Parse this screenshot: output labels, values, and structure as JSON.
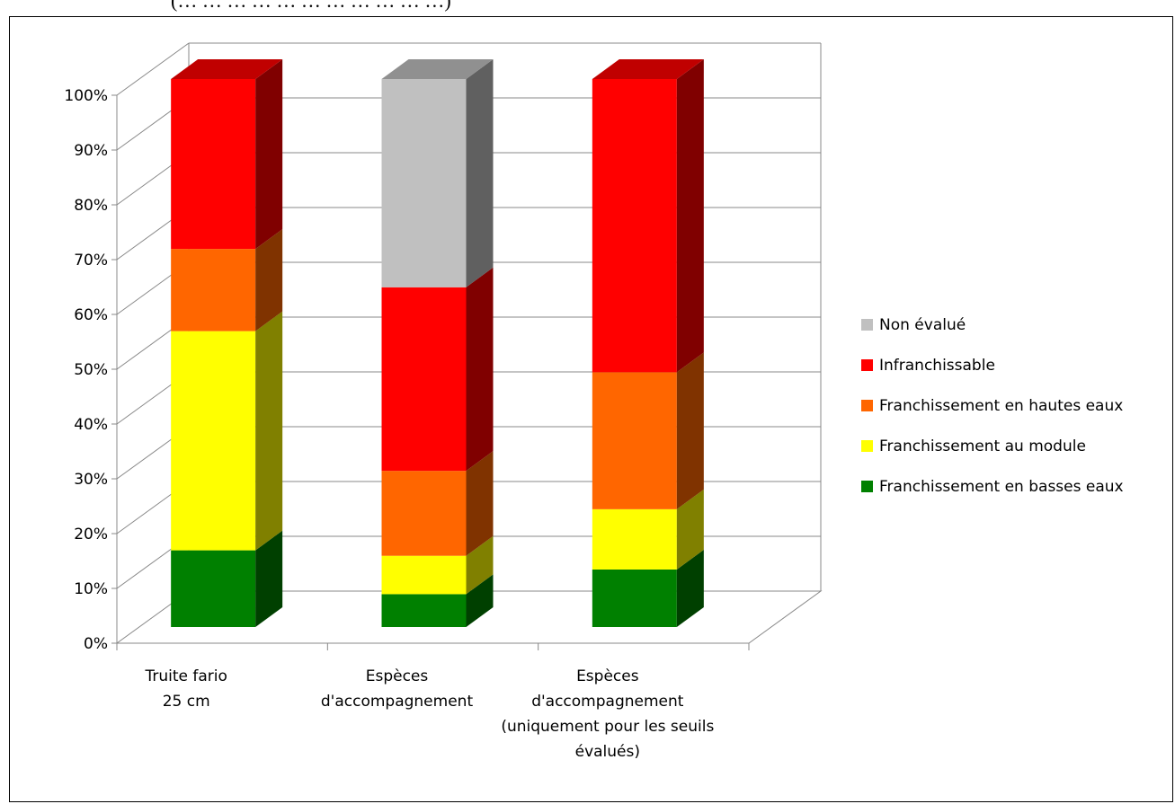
{
  "header_fragment": "(… … … … … … … … … … …)",
  "chart_data": {
    "type": "bar",
    "stacked": true,
    "three_d": true,
    "y_axis": {
      "ticks": [
        "0%",
        "10%",
        "20%",
        "30%",
        "40%",
        "50%",
        "60%",
        "70%",
        "80%",
        "90%",
        "100%"
      ],
      "ylim": [
        0,
        100
      ],
      "unit": "%",
      "grid": true
    },
    "categories": [
      [
        "Truite fario",
        "25 cm"
      ],
      [
        "Espèces",
        "d'accompagnement"
      ],
      [
        "Espèces",
        "d'accompagnement",
        "(uniquement pour les seuils",
        "évalués)"
      ]
    ],
    "series": [
      {
        "name": "Franchissement en basses eaux",
        "color": "#008000",
        "side": "#004000",
        "top": "#00a000",
        "values": [
          14,
          6,
          10.5
        ]
      },
      {
        "name": "Franchissement au module",
        "color": "#ffff00",
        "side": "#808000",
        "top": "#ffff66",
        "values": [
          40,
          7,
          11
        ]
      },
      {
        "name": "Franchissement en hautes eaux",
        "color": "#ff6600",
        "side": "#803300",
        "top": "#ff9944",
        "values": [
          15,
          15.5,
          25
        ]
      },
      {
        "name": "Infranchissable",
        "color": "#ff0000",
        "side": "#800000",
        "top": "#c00000",
        "values": [
          31,
          33.5,
          53.5
        ]
      },
      {
        "name": "Non évalué",
        "color": "#c0c0c0",
        "side": "#606060",
        "top": "#909090",
        "values": [
          0,
          38,
          0
        ]
      }
    ],
    "legend": {
      "position": "right",
      "order": [
        "Non évalué",
        "Infranchissable",
        "Franchissement en hautes eaux",
        "Franchissement au module",
        "Franchissement en basses eaux"
      ]
    }
  }
}
